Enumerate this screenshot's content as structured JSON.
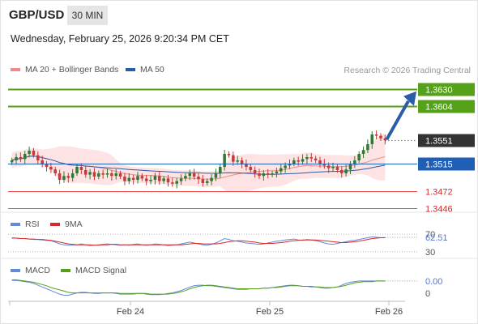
{
  "header": {
    "pair": "GBP/USD",
    "timeframe": "30 MIN",
    "datetime": "Wednesday, February 25, 2026 9:20:34 PM CET",
    "copyright": "Research © 2026 Trading Central"
  },
  "legend": {
    "ma20_bb": "MA 20 + Bollinger Bands",
    "ma50": "MA 50",
    "rsi": "RSI",
    "rsi_ma": "9MA",
    "macd": "MACD",
    "macd_signal": "MACD Signal"
  },
  "colors": {
    "bull": "#2f7a32",
    "bear": "#c53a3a",
    "ma20": "#f08a8a",
    "bands_fill": "#fde0e0",
    "ma50": "#2b5ca8",
    "resistance": "#55a11a",
    "support": "#e84a4a",
    "pivot": "#1f5fb5",
    "arrow": "#2b5ca8",
    "current": "#333333",
    "rsi": "#6688d8",
    "rsi_ma": "#d82828",
    "macd": "#6688d8",
    "macd_signal": "#55a11a"
  },
  "chart_data": {
    "type": "candlestick",
    "instrument": "GBP/USD",
    "interval": "30 MIN",
    "x_ticks": [
      "Feb 24",
      "Feb 25",
      "Feb 26"
    ],
    "price_levels": [
      {
        "value": "1.3630",
        "kind": "resistance"
      },
      {
        "value": "1.3604",
        "kind": "resistance"
      },
      {
        "value": "1.3551",
        "kind": "current"
      },
      {
        "value": "1.3515",
        "kind": "pivot"
      },
      {
        "value": "1.3472",
        "kind": "support"
      },
      {
        "value": "1.3446",
        "kind": "support"
      }
    ],
    "price_range": [
      1.344,
      1.364
    ],
    "closes": [
      1.352,
      1.3525,
      1.3522,
      1.353,
      1.3535,
      1.3528,
      1.352,
      1.3514,
      1.351,
      1.3506,
      1.35,
      1.349,
      1.3496,
      1.3493,
      1.35,
      1.351,
      1.3505,
      1.3498,
      1.3502,
      1.3495,
      1.35,
      1.3498,
      1.35,
      1.3496,
      1.35,
      1.3495,
      1.3488,
      1.3493,
      1.349,
      1.3496,
      1.3492,
      1.3488,
      1.349,
      1.3496,
      1.3488,
      1.3492,
      1.3486,
      1.3484,
      1.3488,
      1.3492,
      1.3496,
      1.35,
      1.3495,
      1.3491,
      1.3485,
      1.3488,
      1.3493,
      1.35,
      1.351,
      1.353,
      1.3528,
      1.3518,
      1.352,
      1.3515,
      1.351,
      1.3505,
      1.35,
      1.3496,
      1.35,
      1.3498,
      1.35,
      1.3503,
      1.3508,
      1.3512,
      1.3515,
      1.352,
      1.3518,
      1.3522,
      1.3525,
      1.3523,
      1.352,
      1.3515,
      1.3512,
      1.3508,
      1.351,
      1.3505,
      1.35,
      1.3506,
      1.3514,
      1.352,
      1.353,
      1.3536,
      1.3545,
      1.356,
      1.3558,
      1.3554,
      1.3551
    ],
    "rsi": {
      "levels": [
        "70",
        "30"
      ],
      "last": "62.51",
      "values": [
        62,
        61,
        60,
        60,
        59,
        58,
        58,
        57,
        56,
        55,
        52,
        48,
        46,
        45,
        45,
        46,
        48,
        46,
        44,
        45,
        46,
        47,
        48,
        47,
        46,
        45,
        46,
        45,
        47,
        48,
        46,
        45,
        46,
        48,
        47,
        46,
        44,
        45,
        46,
        48,
        50,
        52,
        50,
        48,
        46,
        45,
        47,
        50,
        55,
        60,
        58,
        55,
        54,
        52,
        50,
        49,
        48,
        47,
        48,
        50,
        52,
        54,
        55,
        57,
        58,
        59,
        57,
        56,
        58,
        57,
        55,
        53,
        50,
        48,
        47,
        49,
        51,
        53,
        55,
        56,
        58,
        60,
        62,
        64,
        63,
        62,
        62.5
      ],
      "ma": [
        61,
        61,
        60,
        60,
        59,
        59,
        58,
        58,
        57,
        56,
        54,
        52,
        50,
        48,
        47,
        46,
        46,
        46,
        46,
        45,
        45,
        46,
        46,
        47,
        47,
        46,
        46,
        46,
        46,
        46,
        46,
        46,
        46,
        46,
        46,
        46,
        46,
        46,
        46,
        46,
        47,
        48,
        49,
        49,
        48,
        48,
        48,
        48,
        49,
        51,
        53,
        54,
        55,
        55,
        54,
        53,
        52,
        50,
        49,
        49,
        49,
        50,
        51,
        52,
        54,
        55,
        56,
        57,
        57,
        57,
        57,
        56,
        55,
        54,
        53,
        52,
        51,
        51,
        52,
        53,
        54,
        56,
        58,
        60,
        61,
        62,
        62
      ]
    },
    "macd": {
      "last": "0.00",
      "zero_label": "0",
      "macd": [
        0.0009,
        0.0009,
        0.0008,
        0.0007,
        0.0006,
        0.0004,
        0.0001,
        -0.0002,
        -0.0005,
        -0.0008,
        -0.0011,
        -0.0014,
        -0.0016,
        -0.0016,
        -0.0014,
        -0.0012,
        -0.0011,
        -0.0011,
        -0.0012,
        -0.0013,
        -0.0013,
        -0.0012,
        -0.0012,
        -0.0012,
        -0.0013,
        -0.0014,
        -0.0014,
        -0.0014,
        -0.0014,
        -0.0013,
        -0.0013,
        -0.0014,
        -0.0015,
        -0.0015,
        -0.0015,
        -0.0014,
        -0.0013,
        -0.0012,
        -0.001,
        -0.0008,
        -0.0005,
        -0.0002,
        0.0,
        0.0001,
        0.0001,
        0.0,
        0.0,
        -0.0001,
        -0.0002,
        -0.0003,
        -0.0004,
        -0.0005,
        -0.0006,
        -0.0006,
        -0.0006,
        -0.0005,
        -0.0005,
        -0.0005,
        -0.0004,
        -0.0004,
        -0.0003,
        -0.0002,
        -0.0001,
        0.0,
        0.0001,
        0.0001,
        0.0,
        -0.0001,
        -0.0001,
        -0.0002,
        -0.0002,
        -0.0003,
        -0.0004,
        -0.0004,
        -0.0003,
        -0.0002,
        0.0001,
        0.0004,
        0.0006,
        0.0007,
        0.0008,
        0.0008,
        0.0008,
        0.0008,
        0.0008,
        0.0008,
        0.0008
      ],
      "signal": [
        0.001,
        0.001,
        0.0009,
        0.0008,
        0.0007,
        0.0006,
        0.0004,
        0.0002,
        0.0,
        -0.0003,
        -0.0005,
        -0.0007,
        -0.0009,
        -0.0011,
        -0.0012,
        -0.0012,
        -0.0012,
        -0.0012,
        -0.0012,
        -0.0012,
        -0.0012,
        -0.0012,
        -0.0012,
        -0.0012,
        -0.0012,
        -0.0013,
        -0.0013,
        -0.0013,
        -0.0013,
        -0.0013,
        -0.0013,
        -0.0013,
        -0.0014,
        -0.0014,
        -0.0014,
        -0.0014,
        -0.0014,
        -0.0013,
        -0.0012,
        -0.001,
        -0.0008,
        -0.0005,
        -0.0003,
        -0.0001,
        0.0,
        0.0001,
        0.0001,
        0.0,
        -0.0001,
        -0.0002,
        -0.0003,
        -0.0004,
        -0.0005,
        -0.0005,
        -0.0005,
        -0.0005,
        -0.0005,
        -0.0005,
        -0.0004,
        -0.0004,
        -0.0003,
        -0.0003,
        -0.0002,
        -0.0001,
        0.0,
        0.0,
        0.0,
        -0.0001,
        -0.0001,
        -0.0001,
        -0.0002,
        -0.0002,
        -0.0003,
        -0.0003,
        -0.0003,
        -0.0002,
        -0.0001,
        0.0001,
        0.0003,
        0.0005,
        0.0006,
        0.0007,
        0.0007,
        0.0007,
        0.0008,
        0.0008,
        0.0008
      ]
    }
  }
}
